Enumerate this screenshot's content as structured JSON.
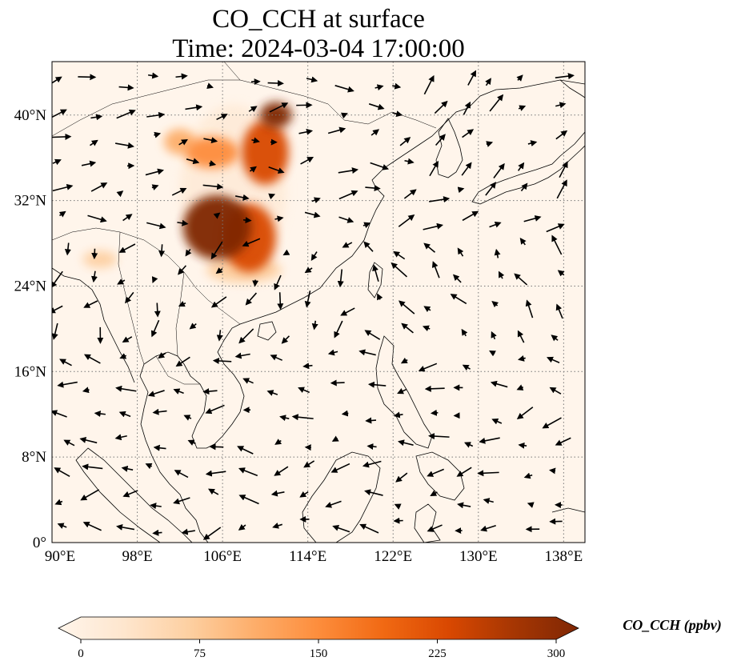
{
  "figure": {
    "title_line1": "CO_CCH at surface",
    "title_line2": "Time: 2024-03-04 17:00:00"
  },
  "map": {
    "lon_range": [
      90,
      140
    ],
    "lat_range": [
      0,
      45
    ],
    "lon_ticks": [
      {
        "value": 90,
        "label": "90°E"
      },
      {
        "value": 98,
        "label": "98°E"
      },
      {
        "value": 106,
        "label": "106°E"
      },
      {
        "value": 114,
        "label": "114°E"
      },
      {
        "value": 122,
        "label": "122°E"
      },
      {
        "value": 130,
        "label": "130°E"
      },
      {
        "value": 138,
        "label": "138°E"
      }
    ],
    "lat_ticks": [
      {
        "value": 0,
        "label": "0°"
      },
      {
        "value": 8,
        "label": "8°N"
      },
      {
        "value": 16,
        "label": "16°N"
      },
      {
        "value": 24,
        "label": "24°N"
      },
      {
        "value": 32,
        "label": "32°N"
      },
      {
        "value": 40,
        "label": "40°N"
      }
    ],
    "gridlines": "dotted",
    "background_color": "#fff5eb",
    "plumes": [
      {
        "lon": 105.5,
        "lat": 29.5,
        "rlon": 3.2,
        "rlat": 3.0,
        "value": 300
      },
      {
        "lon": 108.5,
        "lat": 28.5,
        "rlon": 2.5,
        "rlat": 3.2,
        "value": 220
      },
      {
        "lon": 110.0,
        "lat": 36.5,
        "rlon": 2.2,
        "rlat": 3.0,
        "value": 230
      },
      {
        "lon": 111.0,
        "lat": 40.0,
        "rlon": 1.5,
        "rlat": 1.2,
        "value": 290
      },
      {
        "lon": 105.0,
        "lat": 36.5,
        "rlon": 2.5,
        "rlat": 1.5,
        "value": 140
      },
      {
        "lon": 102.0,
        "lat": 37.5,
        "rlon": 1.5,
        "rlat": 1.2,
        "value": 110
      },
      {
        "lon": 108.0,
        "lat": 25.5,
        "rlon": 3.5,
        "rlat": 1.2,
        "value": 90
      },
      {
        "lon": 94.5,
        "lat": 26.5,
        "rlon": 1.6,
        "rlat": 0.8,
        "value": 80
      },
      {
        "lon": 107.0,
        "lat": 33.0,
        "rlon": 5.0,
        "rlat": 8.0,
        "value": 40
      }
    ]
  },
  "colorbar": {
    "label": "CO_CCH (ppbv)",
    "min": 0,
    "max": 300,
    "ticks": [
      {
        "value": 0,
        "label": "0"
      },
      {
        "value": 75,
        "label": "75"
      },
      {
        "value": 150,
        "label": "150"
      },
      {
        "value": 225,
        "label": "225"
      },
      {
        "value": 300,
        "label": "300"
      }
    ],
    "colormap": [
      "#fff5eb",
      "#fee6ce",
      "#fdd0a2",
      "#fdae6b",
      "#fd8d3c",
      "#f16913",
      "#d94801",
      "#a63603",
      "#7f2704"
    ],
    "extend": "both"
  }
}
